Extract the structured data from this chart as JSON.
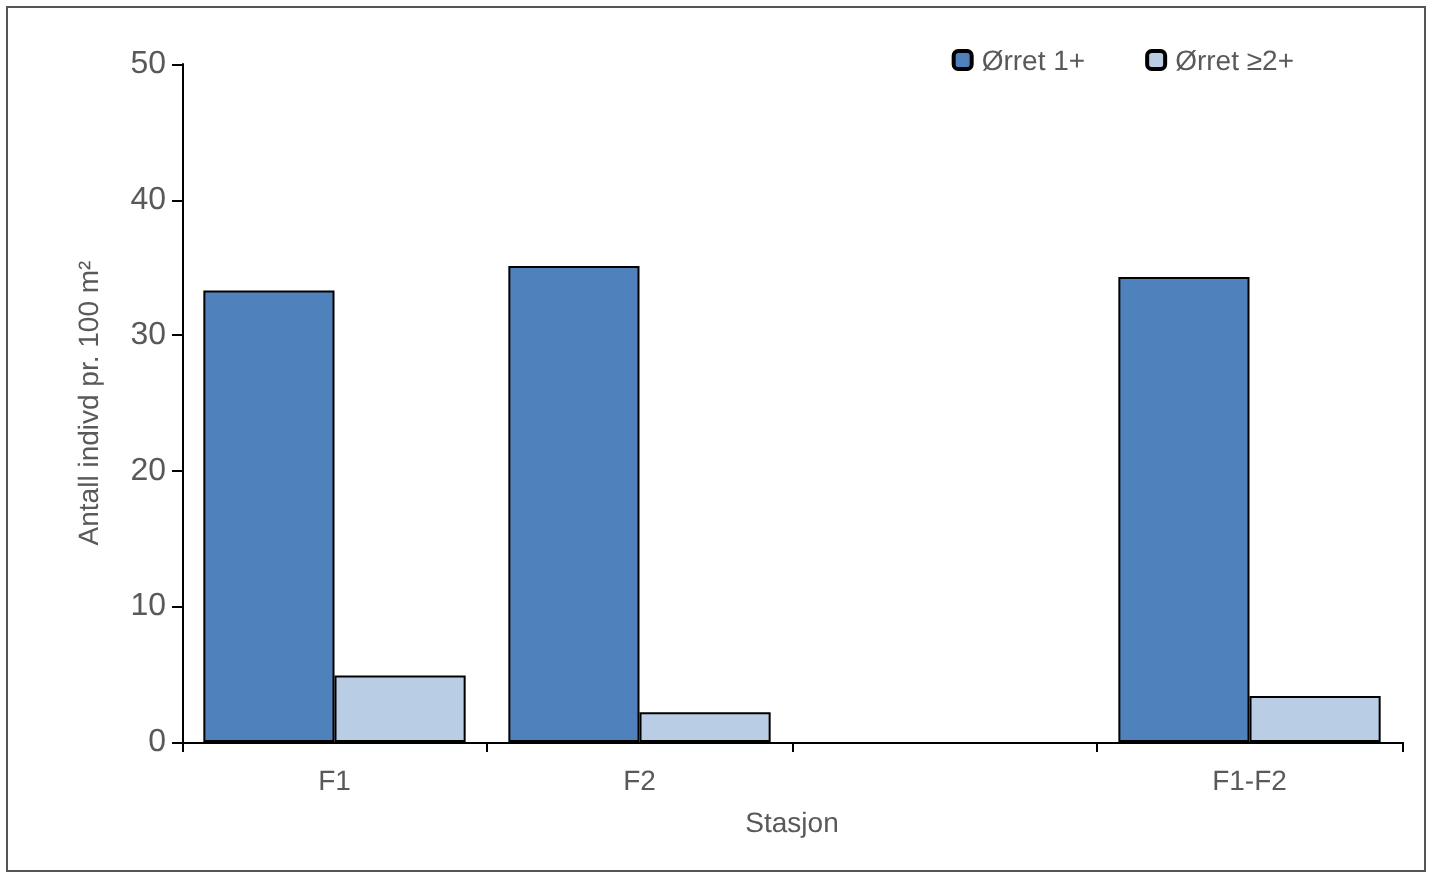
{
  "chart_data": {
    "type": "bar",
    "xlabel": "Stasjon",
    "ylabel": "Antall indivd pr. 100 m²",
    "categories": [
      "F1",
      "F2",
      null,
      "F1-F2"
    ],
    "series": [
      {
        "name": "Ørret 1+",
        "color": "#4f81bd",
        "values": [
          33.3,
          35.1,
          null,
          34.3
        ]
      },
      {
        "name": "Ørret ≥2+",
        "color": "#b9cde5",
        "values": [
          4.9,
          2.2,
          null,
          3.4
        ]
      }
    ],
    "ylim": [
      0,
      50
    ],
    "yticks": [
      0,
      10,
      20,
      30,
      40,
      50
    ],
    "grid": false,
    "legend": "top right"
  }
}
